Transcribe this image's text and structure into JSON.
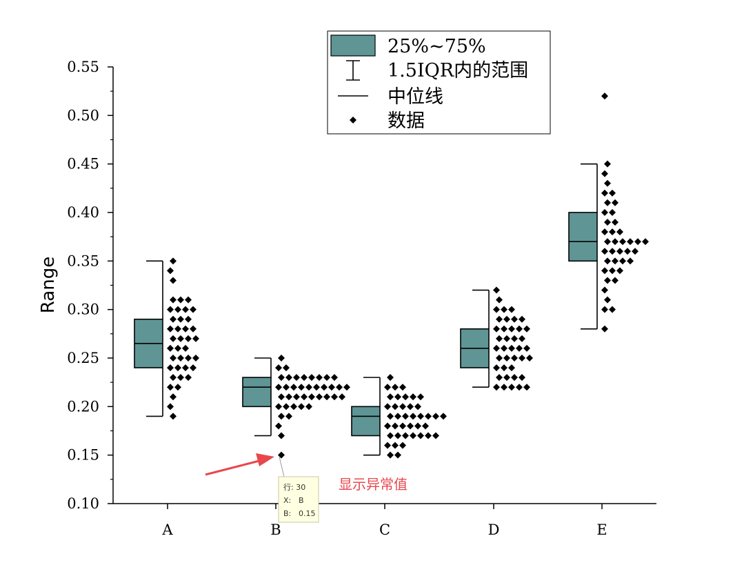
{
  "chart_data": {
    "type": "box",
    "ylabel": "Range",
    "ylim": [
      0.1,
      0.55
    ],
    "yticks": [
      "0.10",
      "0.15",
      "0.20",
      "0.25",
      "0.30",
      "0.35",
      "0.40",
      "0.45",
      "0.50",
      "0.55"
    ],
    "categories": [
      "A",
      "B",
      "C",
      "D",
      "E"
    ],
    "box_color": "#5f9595",
    "boxes": [
      {
        "category": "A",
        "q1": 0.24,
        "median": 0.265,
        "q3": 0.29,
        "whisker_low": 0.19,
        "whisker_high": 0.35,
        "points": [
          0.35,
          0.34,
          0.33,
          0.31,
          0.31,
          0.31,
          0.3,
          0.3,
          0.3,
          0.3,
          0.29,
          0.29,
          0.29,
          0.28,
          0.28,
          0.28,
          0.28,
          0.27,
          0.27,
          0.27,
          0.27,
          0.26,
          0.26,
          0.26,
          0.25,
          0.25,
          0.25,
          0.25,
          0.24,
          0.24,
          0.24,
          0.24,
          0.23,
          0.23,
          0.23,
          0.22,
          0.22,
          0.21,
          0.2,
          0.19
        ]
      },
      {
        "category": "B",
        "q1": 0.2,
        "median": 0.22,
        "q3": 0.23,
        "whisker_low": 0.17,
        "whisker_high": 0.25,
        "points": [
          0.25,
          0.24,
          0.24,
          0.23,
          0.23,
          0.23,
          0.23,
          0.23,
          0.23,
          0.23,
          0.23,
          0.22,
          0.22,
          0.22,
          0.22,
          0.22,
          0.22,
          0.22,
          0.22,
          0.22,
          0.22,
          0.21,
          0.21,
          0.21,
          0.21,
          0.21,
          0.21,
          0.21,
          0.21,
          0.21,
          0.2,
          0.2,
          0.2,
          0.2,
          0.2,
          0.19,
          0.19,
          0.18,
          0.17,
          0.15
        ]
      },
      {
        "category": "C",
        "q1": 0.17,
        "median": 0.19,
        "q3": 0.2,
        "whisker_low": 0.15,
        "whisker_high": 0.23,
        "points": [
          0.23,
          0.22,
          0.22,
          0.22,
          0.21,
          0.21,
          0.21,
          0.21,
          0.21,
          0.2,
          0.2,
          0.2,
          0.2,
          0.2,
          0.19,
          0.19,
          0.19,
          0.19,
          0.19,
          0.19,
          0.19,
          0.19,
          0.18,
          0.18,
          0.18,
          0.18,
          0.18,
          0.18,
          0.17,
          0.17,
          0.17,
          0.17,
          0.17,
          0.17,
          0.17,
          0.16,
          0.16,
          0.16,
          0.15,
          0.15
        ]
      },
      {
        "category": "D",
        "q1": 0.24,
        "median": 0.26,
        "q3": 0.28,
        "whisker_low": 0.22,
        "whisker_high": 0.32,
        "points": [
          0.32,
          0.31,
          0.3,
          0.3,
          0.3,
          0.29,
          0.29,
          0.29,
          0.29,
          0.28,
          0.28,
          0.28,
          0.28,
          0.28,
          0.27,
          0.27,
          0.27,
          0.27,
          0.26,
          0.26,
          0.26,
          0.26,
          0.26,
          0.25,
          0.25,
          0.25,
          0.25,
          0.25,
          0.24,
          0.24,
          0.24,
          0.23,
          0.23,
          0.23,
          0.23,
          0.22,
          0.22,
          0.22,
          0.22,
          0.22
        ]
      },
      {
        "category": "E",
        "q1": 0.35,
        "median": 0.37,
        "q3": 0.4,
        "whisker_low": 0.28,
        "whisker_high": 0.45,
        "points": [
          0.52,
          0.45,
          0.44,
          0.43,
          0.42,
          0.42,
          0.41,
          0.41,
          0.4,
          0.4,
          0.39,
          0.39,
          0.38,
          0.38,
          0.38,
          0.37,
          0.37,
          0.37,
          0.37,
          0.37,
          0.37,
          0.36,
          0.36,
          0.36,
          0.36,
          0.36,
          0.35,
          0.35,
          0.35,
          0.34,
          0.34,
          0.34,
          0.33,
          0.33,
          0.32,
          0.31,
          0.3,
          0.3,
          0.28,
          0.35
        ]
      }
    ]
  },
  "legend": {
    "items": [
      {
        "label": "25%~75%",
        "symbol": "box"
      },
      {
        "label": "1.5IQR内的范围",
        "symbol": "whisker"
      },
      {
        "label": "中位线",
        "symbol": "line"
      },
      {
        "label": "数据",
        "symbol": "diamond"
      }
    ]
  },
  "annotation": {
    "text": "显示异常值",
    "color": "#e8474e"
  },
  "tooltip": {
    "row_label": "行: 30",
    "x_label": "X:",
    "x_value": "B",
    "b_label": "B:",
    "b_value": "0.15"
  }
}
